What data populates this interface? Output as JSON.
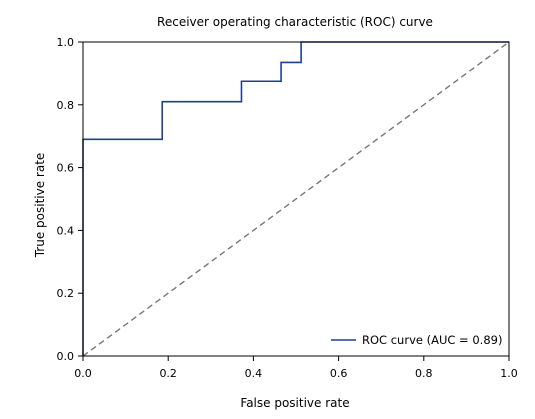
{
  "chart_data": {
    "type": "line",
    "title": "Receiver operating characteristic (ROC) curve",
    "xlabel": "False positive rate",
    "ylabel": "True positive rate",
    "xlim": [
      0.0,
      1.0
    ],
    "ylim": [
      0.0,
      1.0
    ],
    "xticks": [
      "0.0",
      "0.2",
      "0.4",
      "0.6",
      "0.8",
      "1.0"
    ],
    "yticks": [
      "0.0",
      "0.2",
      "0.4",
      "0.6",
      "0.8",
      "1.0"
    ],
    "grid": false,
    "legend_position": "bottom-right",
    "series": [
      {
        "name": "ROC curve (AUC = 0.89)",
        "color": "#1f3f8f",
        "style": "solid",
        "x": [
          0.0,
          0.0,
          0.186,
          0.186,
          0.372,
          0.372,
          0.465,
          0.465,
          0.512,
          0.512,
          1.0
        ],
        "y": [
          0.0,
          0.69,
          0.69,
          0.81,
          0.81,
          0.875,
          0.875,
          0.935,
          0.935,
          1.0,
          1.0
        ]
      },
      {
        "color": "#777777",
        "style": "dashed",
        "x": [
          0.0,
          1.0
        ],
        "y": [
          0.0,
          1.0
        ]
      }
    ]
  }
}
